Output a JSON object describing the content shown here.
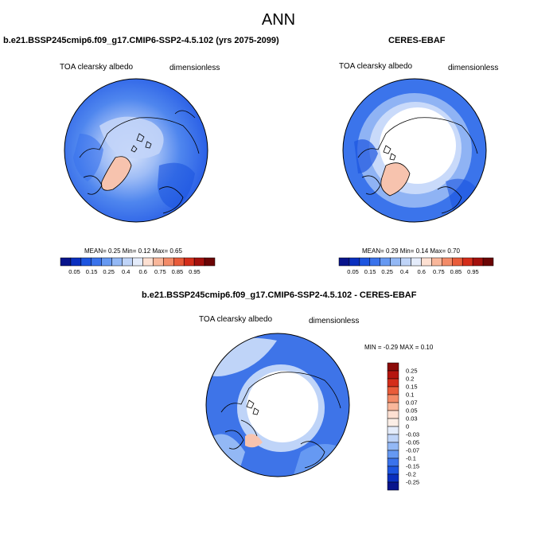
{
  "title": "ANN",
  "panel1": {
    "case": "b.e21.BSSP245cmip6.f09_g17.CMIP6-SSP2-4.5.102 (yrs 2075-2099)",
    "var": "TOA clearsky albedo",
    "units": "dimensionless",
    "stats": "MEAN=   0.25  Min=   0.12  Max=   0.65"
  },
  "panel2": {
    "case": "CERES-EBAF",
    "var": "TOA clearsky albedo",
    "units": "dimensionless",
    "stats": "MEAN=   0.29  Min=   0.14  Max=   0.70"
  },
  "panel3": {
    "case": "b.e21.BSSP245cmip6.f09_g17.CMIP6-SSP2-4.5.102 - CERES-EBAF",
    "var": "TOA clearsky albedo",
    "units": "dimensionless",
    "stats": "MIN = -0.29 MAX =   0.10"
  },
  "colorbar_main": {
    "labels": [
      "0.05",
      "0.15",
      "0.25",
      "0.4",
      "0.6",
      "0.75",
      "0.85",
      "0.95"
    ],
    "colors": [
      "#08148c",
      "#0a2fbf",
      "#1d55e0",
      "#3a73ec",
      "#6699f2",
      "#93b8f5",
      "#bfd4f8",
      "#e4ecfb",
      "#fde0d2",
      "#f9b79b",
      "#f38b68",
      "#e95c3a",
      "#d42d1a",
      "#a3100c",
      "#6b0505"
    ]
  },
  "colorbar_diff": {
    "labels": [
      "0.25",
      "0.2",
      "0.15",
      "0.1",
      "0.07",
      "0.05",
      "0.03",
      "0",
      "-0.03",
      "-0.05",
      "-0.07",
      "-0.1",
      "-0.15",
      "-0.2",
      "-0.25"
    ],
    "colors": [
      "#8b0a08",
      "#b5150e",
      "#d42d1a",
      "#e95c3a",
      "#f38b68",
      "#f9b79b",
      "#fde0d2",
      "#fbeee6",
      "#e4ecfb",
      "#bfd4f8",
      "#93b8f5",
      "#6699f2",
      "#3a73ec",
      "#1d55e0",
      "#0a2fbf",
      "#08148c"
    ]
  }
}
